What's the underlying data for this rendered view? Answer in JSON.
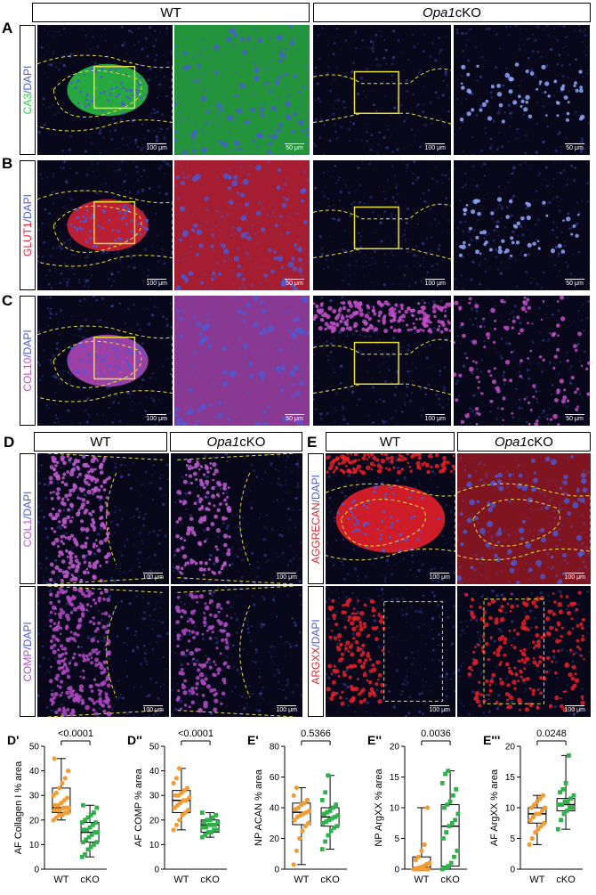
{
  "headers": {
    "wt": "WT",
    "ko_prefix": "Opa1",
    "ko_suffix": "cKO"
  },
  "panels": {
    "A": {
      "label": "A",
      "stain_marker": "CA3",
      "stain_dapi": "/DAPI",
      "scale_bars": [
        "100 μm",
        "50 μm",
        "100 μm",
        "50 μm"
      ]
    },
    "B": {
      "label": "B",
      "stain_marker": "GLUT1",
      "stain_dapi": "/DAPI",
      "scale_bars": [
        "100 μm",
        "50 μm",
        "100 μm",
        "50 μm"
      ]
    },
    "C": {
      "label": "C",
      "stain_marker": "COL10",
      "stain_dapi": "/DAPI",
      "scale_bars": [
        "100 μm",
        "50 μm",
        "100 μm",
        "50 μm"
      ]
    },
    "D": {
      "label": "D",
      "rows": [
        {
          "marker": "COL1",
          "dapi": "/DAPI",
          "scale_bars": [
            "100 μm",
            "100 μm"
          ]
        },
        {
          "marker": "COMP",
          "dapi": "/DAPI",
          "scale_bars": [
            "100 μm",
            "100 μm"
          ]
        }
      ]
    },
    "E": {
      "label": "E",
      "rows": [
        {
          "marker": "AGGRECAN",
          "dapi": "/DAPI",
          "scale_bars": [
            "100 μm",
            "100 μm"
          ]
        },
        {
          "marker": "ARGXX",
          "dapi": "/DAPI",
          "scale_bars": [
            "100 μm",
            "100 μm"
          ]
        }
      ]
    }
  },
  "colors": {
    "wt_points": "#f39c33",
    "cko_points": "#2db24a",
    "ca3": "#2fd04a",
    "glut1": "#e8263b",
    "col10": "#c24fc8",
    "col1": "#c05ad0",
    "comp": "#b04ac4",
    "aggrecan": "#e4202a",
    "dapi": "#4a5ad8",
    "outline": "#e8e03a"
  },
  "chart_data": [
    {
      "panel": "D'",
      "type": "box",
      "ylabel": "AF Collagen I % area",
      "ylim": [
        0,
        50
      ],
      "yticks": [
        0,
        10,
        20,
        30,
        40,
        50
      ],
      "categories": [
        "WT",
        "cKO"
      ],
      "pvalue": "<0.0001",
      "series": [
        {
          "name": "WT",
          "min": 20,
          "q1": 23,
          "median": 25,
          "q3": 33,
          "max": 45,
          "points": [
            20,
            21,
            22,
            22,
            23,
            23,
            24,
            24,
            24,
            25,
            25,
            25,
            26,
            26,
            27,
            28,
            29,
            30,
            31,
            33,
            35,
            37,
            40,
            45
          ]
        },
        {
          "name": "cKO",
          "min": 5,
          "q1": 11,
          "median": 15,
          "q3": 19,
          "max": 26,
          "points": [
            5,
            6,
            8,
            9,
            10,
            11,
            11,
            12,
            13,
            14,
            15,
            15,
            16,
            16,
            17,
            18,
            19,
            19,
            20,
            21,
            22,
            23,
            25,
            26
          ]
        }
      ]
    },
    {
      "panel": "D''",
      "type": "box",
      "ylabel": "AF COMP % area",
      "ylim": [
        0,
        50
      ],
      "yticks": [
        0,
        10,
        20,
        30,
        40,
        50
      ],
      "categories": [
        "WT",
        "cKO"
      ],
      "pvalue": "<0.0001",
      "series": [
        {
          "name": "WT",
          "min": 16,
          "q1": 23,
          "median": 28,
          "q3": 32,
          "max": 41,
          "points": [
            16,
            18,
            20,
            22,
            23,
            24,
            25,
            26,
            27,
            28,
            28,
            29,
            30,
            30,
            31,
            32,
            33,
            35,
            37,
            41
          ]
        },
        {
          "name": "cKO",
          "min": 13,
          "q1": 15,
          "median": 18,
          "q3": 20,
          "max": 23,
          "points": [
            13,
            14,
            15,
            15,
            16,
            16,
            17,
            17,
            18,
            18,
            18,
            19,
            19,
            20,
            20,
            21,
            22,
            23
          ]
        }
      ]
    },
    {
      "panel": "E'",
      "type": "box",
      "ylabel": "NP ACAN % area",
      "ylim": [
        0,
        80
      ],
      "yticks": [
        0,
        20,
        40,
        60,
        80
      ],
      "categories": [
        "WT",
        "cKO"
      ],
      "pvalue": "0.5366",
      "series": [
        {
          "name": "WT",
          "min": 3,
          "q1": 29,
          "median": 37,
          "q3": 43,
          "max": 53,
          "points": [
            3,
            12,
            20,
            25,
            28,
            30,
            32,
            34,
            35,
            36,
            37,
            38,
            39,
            40,
            42,
            43,
            45,
            48,
            53
          ]
        },
        {
          "name": "cKO",
          "min": 13,
          "q1": 28,
          "median": 34,
          "q3": 40,
          "max": 61,
          "points": [
            13,
            18,
            22,
            25,
            27,
            28,
            30,
            31,
            32,
            33,
            34,
            35,
            36,
            37,
            38,
            40,
            42,
            45,
            50,
            61
          ]
        }
      ]
    },
    {
      "panel": "E''",
      "type": "box",
      "ylabel": "NP ArgXX % area",
      "ylim": [
        0,
        20
      ],
      "yticks": [
        0,
        5,
        10,
        15,
        20
      ],
      "categories": [
        "WT",
        "cKO"
      ],
      "pvalue": "0.0036",
      "series": [
        {
          "name": "WT",
          "min": 0,
          "q1": 0,
          "median": 0.3,
          "q3": 2,
          "max": 10,
          "points": [
            0,
            0,
            0,
            0,
            0,
            0,
            0.1,
            0.2,
            0.3,
            0.5,
            0.8,
            1,
            1.5,
            2,
            3,
            4,
            10
          ]
        },
        {
          "name": "cKO",
          "min": 0,
          "q1": 0.5,
          "median": 7,
          "q3": 10.5,
          "max": 16,
          "points": [
            0,
            0.2,
            0.5,
            1,
            2,
            3,
            5,
            6,
            7,
            7.5,
            8,
            9,
            10,
            10.5,
            11,
            12,
            13,
            14,
            15.5,
            16
          ]
        }
      ]
    },
    {
      "panel": "E'''",
      "type": "box",
      "ylabel": "AF ArgXX % area",
      "ylim": [
        0,
        20
      ],
      "yticks": [
        0,
        5,
        10,
        15,
        20
      ],
      "categories": [
        "WT",
        "cKO"
      ],
      "pvalue": "0.0248",
      "series": [
        {
          "name": "WT",
          "min": 4,
          "q1": 7.5,
          "median": 9,
          "q3": 10,
          "max": 12,
          "points": [
            4,
            5,
            6,
            6.5,
            7,
            7.5,
            8,
            8.5,
            9,
            9,
            9.5,
            10,
            10,
            10.5,
            11,
            11.5,
            12
          ]
        },
        {
          "name": "cKO",
          "min": 6.5,
          "q1": 9.5,
          "median": 10.5,
          "q3": 11.5,
          "max": 18.5,
          "points": [
            6.5,
            8,
            9,
            9.5,
            10,
            10,
            10.5,
            10.5,
            11,
            11,
            11.5,
            12,
            12.5,
            13,
            14,
            18.5
          ]
        }
      ]
    }
  ]
}
